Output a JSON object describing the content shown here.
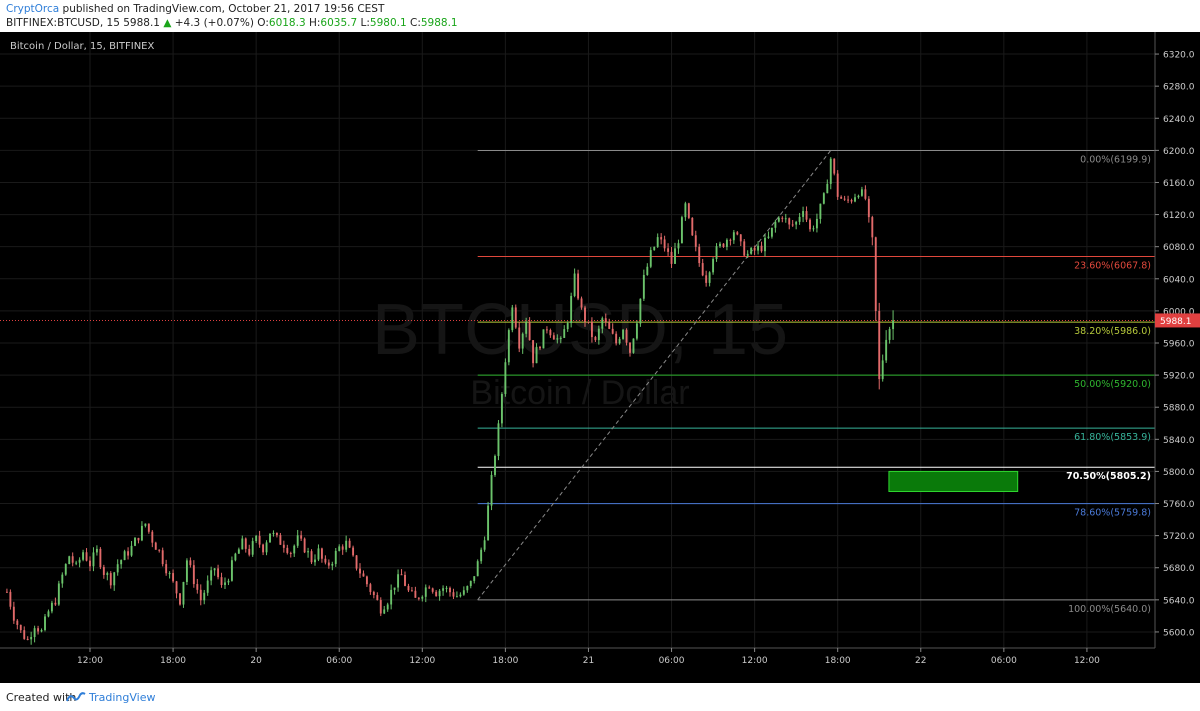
{
  "header": {
    "author": "CryptOrca",
    "published_text": " published on TradingView.com, October 21, 2017 19:56 CEST",
    "symbol": "BITFINEX:BTCUSD, 15",
    "last_price": "5988.1",
    "change": "+4.3 (+0.07%)",
    "o_label": "O:",
    "o_value": "6018.3",
    "h_label": "H:",
    "h_value": "6035.7",
    "l_label": "L:",
    "l_value": "5980.1",
    "c_label": "C:",
    "c_value": "5988.1"
  },
  "chart_data": {
    "type": "candlestick",
    "title": "Bitcoin / Dollar, 15, BITFINEX",
    "watermark_symbol": "BTCUSD, 15",
    "watermark_name": "Bitcoin / Dollar",
    "ylim": [
      5580,
      6340
    ],
    "y_ticks": [
      5600,
      5640,
      5680,
      5720,
      5760,
      5800,
      5840,
      5880,
      5920,
      5960,
      6000,
      6040,
      6080,
      6120,
      6160,
      6200,
      6240,
      6280,
      6320
    ],
    "y_tick_labels": [
      "5600.0",
      "5640.0",
      "5680.0",
      "5720.0",
      "5760.0",
      "5800.0",
      "5840.0",
      "5880.0",
      "5920.0",
      "5960.0",
      "6000.0",
      "6040.0",
      "6080.0",
      "6120.0",
      "6160.0",
      "6200.0",
      "6240.0",
      "6280.0",
      "6320.0"
    ],
    "x_range_hours": [
      -0.5,
      64.5
    ],
    "x_ticks": [
      {
        "t": 6,
        "label": "12:00"
      },
      {
        "t": 12,
        "label": "18:00"
      },
      {
        "t": 18,
        "label": "20"
      },
      {
        "t": 24,
        "label": "06:00"
      },
      {
        "t": 30,
        "label": "12:00"
      },
      {
        "t": 36,
        "label": "18:00"
      },
      {
        "t": 42,
        "label": "21"
      },
      {
        "t": 48,
        "label": "06:00"
      },
      {
        "t": 54,
        "label": "12:00"
      },
      {
        "t": 60,
        "label": "18:00"
      },
      {
        "t": 66,
        "label": "22"
      },
      {
        "t": 72,
        "label": "06:00"
      },
      {
        "t": 78,
        "label": "12:00"
      }
    ],
    "current_price": 5988.1,
    "current_price_label": "5988.1",
    "price_series": [
      [
        0,
        5650
      ],
      [
        0.5,
        5620
      ],
      [
        1,
        5600
      ],
      [
        1.5,
        5590
      ],
      [
        2,
        5610
      ],
      [
        2.5,
        5600
      ],
      [
        3,
        5625
      ],
      [
        3.5,
        5640
      ],
      [
        4,
        5670
      ],
      [
        4.5,
        5695
      ],
      [
        5,
        5680
      ],
      [
        5.5,
        5700
      ],
      [
        6,
        5685
      ],
      [
        6.5,
        5700
      ],
      [
        7,
        5675
      ],
      [
        7.5,
        5665
      ],
      [
        8,
        5685
      ],
      [
        8.5,
        5695
      ],
      [
        9,
        5705
      ],
      [
        9.5,
        5720
      ],
      [
        10,
        5735
      ],
      [
        10.5,
        5715
      ],
      [
        11,
        5700
      ],
      [
        11.5,
        5680
      ],
      [
        12,
        5660
      ],
      [
        12.5,
        5640
      ],
      [
        13,
        5690
      ],
      [
        13.5,
        5665
      ],
      [
        14,
        5640
      ],
      [
        14.5,
        5660
      ],
      [
        15,
        5680
      ],
      [
        15.5,
        5655
      ],
      [
        16,
        5670
      ],
      [
        16.5,
        5695
      ],
      [
        17,
        5710
      ],
      [
        17.5,
        5700
      ],
      [
        18,
        5715
      ],
      [
        18.5,
        5705
      ],
      [
        19,
        5725
      ],
      [
        19.5,
        5715
      ],
      [
        20,
        5710
      ],
      [
        20.5,
        5700
      ],
      [
        21,
        5715
      ],
      [
        21.5,
        5705
      ],
      [
        22,
        5690
      ],
      [
        22.5,
        5700
      ],
      [
        23,
        5680
      ],
      [
        23.5,
        5690
      ],
      [
        24,
        5705
      ],
      [
        24.5,
        5710
      ],
      [
        25,
        5690
      ],
      [
        25.5,
        5675
      ],
      [
        26,
        5660
      ],
      [
        26.5,
        5645
      ],
      [
        27,
        5630
      ],
      [
        27.5,
        5640
      ],
      [
        28,
        5660
      ],
      [
        28.5,
        5670
      ],
      [
        29,
        5650
      ],
      [
        29.5,
        5640
      ],
      [
        30,
        5650
      ],
      [
        30.5,
        5660
      ],
      [
        31,
        5650
      ],
      [
        31.5,
        5655
      ],
      [
        32,
        5650
      ],
      [
        32.5,
        5645
      ],
      [
        33,
        5648
      ],
      [
        33.5,
        5660
      ],
      [
        34,
        5685
      ],
      [
        34.5,
        5720
      ],
      [
        35,
        5790
      ],
      [
        35.5,
        5855
      ],
      [
        36,
        5940
      ],
      [
        36.5,
        6010
      ],
      [
        37,
        5960
      ],
      [
        37.5,
        5990
      ],
      [
        38,
        5940
      ],
      [
        38.5,
        5960
      ],
      [
        39,
        5980
      ],
      [
        39.5,
        5970
      ],
      [
        40,
        5960
      ],
      [
        40.5,
        5990
      ],
      [
        41,
        6040
      ],
      [
        41.5,
        6000
      ],
      [
        42,
        5980
      ],
      [
        42.5,
        5960
      ],
      [
        43,
        5990
      ],
      [
        43.5,
        5975
      ],
      [
        44,
        5960
      ],
      [
        44.5,
        5980
      ],
      [
        45,
        5950
      ],
      [
        45.5,
        5990
      ],
      [
        46,
        6040
      ],
      [
        46.5,
        6070
      ],
      [
        47,
        6090
      ],
      [
        47.5,
        6080
      ],
      [
        48,
        6060
      ],
      [
        48.5,
        6090
      ],
      [
        49,
        6130
      ],
      [
        49.5,
        6090
      ],
      [
        50,
        6060
      ],
      [
        50.5,
        6040
      ],
      [
        51,
        6070
      ],
      [
        51.5,
        6080
      ],
      [
        52,
        6090
      ],
      [
        52.5,
        6100
      ],
      [
        53,
        6080
      ],
      [
        53.5,
        6070
      ],
      [
        54,
        6075
      ],
      [
        54.5,
        6080
      ],
      [
        55,
        6090
      ],
      [
        55.5,
        6110
      ],
      [
        56,
        6120
      ],
      [
        56.5,
        6105
      ],
      [
        57,
        6110
      ],
      [
        57.5,
        6130
      ],
      [
        58,
        6100
      ],
      [
        58.5,
        6115
      ],
      [
        59,
        6140
      ],
      [
        59.5,
        6190
      ],
      [
        60,
        6145
      ],
      [
        60.5,
        6135
      ],
      [
        61,
        6140
      ],
      [
        61.5,
        6150
      ],
      [
        62,
        6140
      ],
      [
        62.5,
        6080
      ],
      [
        63,
        5910
      ],
      [
        63.5,
        5975
      ],
      [
        64,
        5988.1
      ]
    ],
    "fibonacci": {
      "x_start": 34,
      "x_end_extend": true,
      "levels": [
        {
          "ratio": 0.0,
          "price": 6199.9,
          "label": "0.00%(6199.9)",
          "color": "#8a8a8a",
          "bold": false
        },
        {
          "ratio": 0.236,
          "price": 6067.8,
          "label": "23.60%(6067.8)",
          "color": "#e0483c",
          "bold": false
        },
        {
          "ratio": 0.382,
          "price": 5986.0,
          "label": "38.20%(5986.0)",
          "color": "#b6c93b",
          "bold": false
        },
        {
          "ratio": 0.5,
          "price": 5920.0,
          "label": "50.00%(5920.0)",
          "color": "#2fb52f",
          "bold": false
        },
        {
          "ratio": 0.618,
          "price": 5853.9,
          "label": "61.80%(5853.9)",
          "color": "#37b39a",
          "bold": false
        },
        {
          "ratio": 0.705,
          "price": 5805.2,
          "label": "70.50%(5805.2)",
          "color": "#ffffff",
          "bold": true
        },
        {
          "ratio": 0.786,
          "price": 5759.8,
          "label": "78.60%(5759.8)",
          "color": "#4a7ad8",
          "bold": false
        },
        {
          "ratio": 1.0,
          "price": 5640.0,
          "label": "100.00%(5640.0)",
          "color": "#8a8a8a",
          "bold": false
        }
      ],
      "trend_line": {
        "from": [
          34,
          5640.0
        ],
        "to": [
          59.5,
          6199.9
        ]
      }
    },
    "target_zone": {
      "x_from": 63.7,
      "x_to": 73.0,
      "y_top": 5800,
      "y_bottom": 5775,
      "color": "#0a7a0a"
    },
    "colors": {
      "background": "#000000",
      "up": "#6bc36b",
      "down": "#e26a6a",
      "axis_text": "#cccccc",
      "grid": "#1a1a1a",
      "price_line": "#e04040",
      "price_badge": "#e04040"
    }
  },
  "footer": {
    "created_with": "Created with",
    "brand": "TradingView"
  }
}
